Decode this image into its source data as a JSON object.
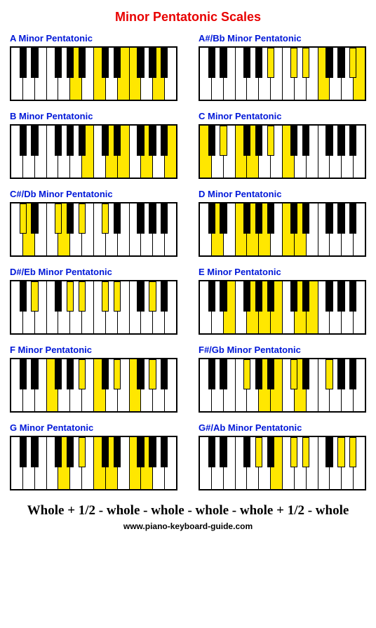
{
  "title": "Minor Pentatonic Scales",
  "title_color": "#e80000",
  "label_color": "#0018d8",
  "highlight_color": "#ffe700",
  "white_color": "#ffffff",
  "black_color": "#000000",
  "formula": "Whole + 1/2 - whole - whole - whole - whole + 1/2 - whole",
  "url": "www.piano-keyboard-guide.com",
  "keyboard": {
    "white_count": 14,
    "black_positions": [
      0,
      1,
      3,
      4,
      5,
      7,
      8,
      10,
      11,
      12
    ],
    "black_width_ratio": 0.62
  },
  "scales": [
    {
      "label": "A Minor Pentatonic",
      "hi_white": [
        5,
        7,
        9,
        10,
        12
      ],
      "hi_black": []
    },
    {
      "label": "A#/Bb Minor Pentatonic",
      "hi_white": [
        10,
        13
      ],
      "hi_black": [
        5,
        7,
        8,
        12
      ]
    },
    {
      "label": "B Minor Pentatonic",
      "hi_white": [
        6,
        8,
        9,
        11,
        13
      ],
      "hi_black": []
    },
    {
      "label": "C Minor Pentatonic",
      "hi_white": [
        0,
        3,
        4,
        7
      ],
      "hi_black": [
        1,
        5
      ]
    },
    {
      "label": "C#/Db Minor Pentatonic",
      "hi_white": [
        1,
        4
      ],
      "hi_black": [
        0,
        3,
        5,
        7
      ]
    },
    {
      "label": "D Minor Pentatonic",
      "hi_white": [
        1,
        3,
        4,
        5,
        7,
        8
      ],
      "hi_black": []
    },
    {
      "label": "D#/Eb Minor Pentatonic",
      "hi_white": [],
      "hi_black": [
        1,
        4,
        5,
        7,
        8,
        11
      ]
    },
    {
      "label": "E Minor Pentatonic",
      "hi_white": [
        2,
        4,
        5,
        6,
        8,
        9
      ],
      "hi_black": []
    },
    {
      "label": "F Minor Pentatonic",
      "hi_white": [
        3,
        7,
        10
      ],
      "hi_black": [
        5,
        8,
        11
      ]
    },
    {
      "label": "F#/Gb Minor Pentatonic",
      "hi_white": [
        5,
        6,
        8
      ],
      "hi_black": [
        3,
        7,
        10
      ]
    },
    {
      "label": "G Minor Pentatonic",
      "hi_white": [
        4,
        7,
        8,
        10,
        11
      ],
      "hi_black": [
        5
      ]
    },
    {
      "label": "G#/Ab Minor Pentatonic",
      "hi_white": [
        6
      ],
      "hi_black": [
        4,
        7,
        8,
        11,
        12
      ]
    }
  ]
}
